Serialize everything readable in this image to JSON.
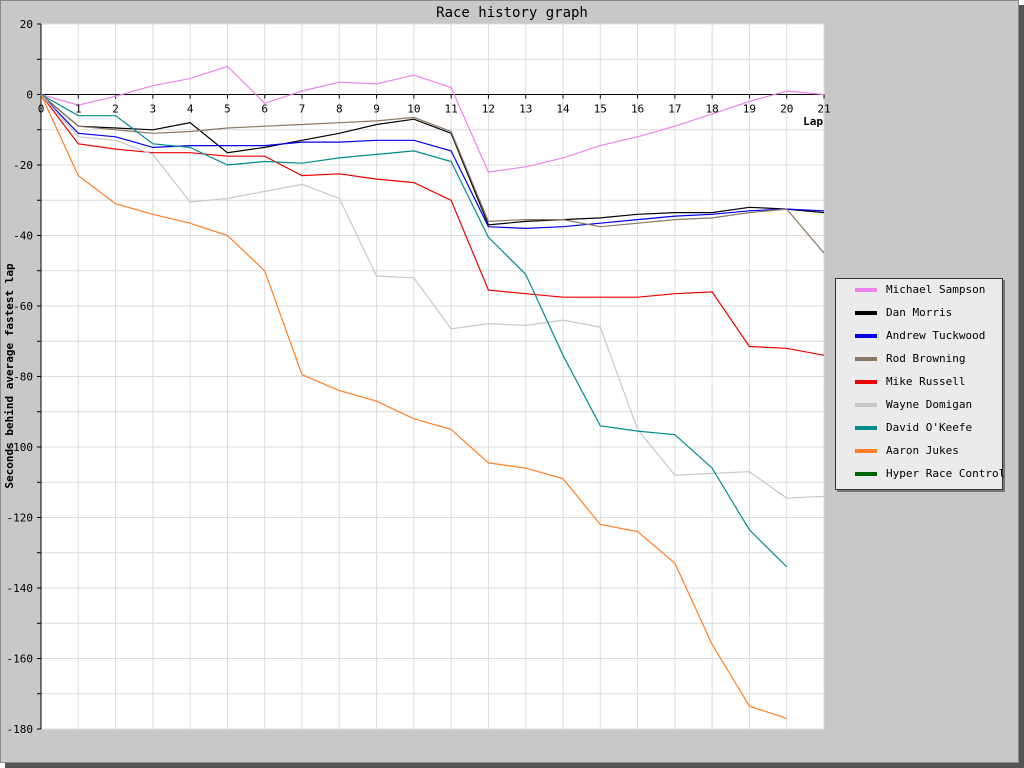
{
  "chart_data": {
    "type": "line",
    "title": "Race history graph",
    "xlabel": "Lap",
    "ylabel": "Seconds behind average fastest lap",
    "xlim": [
      0,
      21
    ],
    "ylim": [
      -180,
      20
    ],
    "x_ticks": [
      "0",
      "1",
      "2",
      "3",
      "4",
      "5",
      "6",
      "7",
      "8",
      "9",
      "10",
      "11",
      "12",
      "13",
      "14",
      "15",
      "16",
      "17",
      "18",
      "19",
      "20",
      "21"
    ],
    "y_ticks": [
      "20",
      "0",
      "-20",
      "-40",
      "-60",
      "-80",
      "-100",
      "-120",
      "-140",
      "-160",
      "-180"
    ],
    "grid": true,
    "legend_position": "right",
    "series": [
      {
        "name": "Michael Sampson",
        "color": "#ee82ee",
        "x": [
          0,
          1,
          2,
          3,
          4,
          5,
          6,
          7,
          8,
          9,
          10,
          11,
          12,
          13,
          14,
          15,
          16,
          17,
          18,
          19,
          20,
          21
        ],
        "y": [
          0,
          -3,
          -0.5,
          2.5,
          4.5,
          8,
          -2.5,
          1,
          3.5,
          3,
          5.5,
          2,
          -22,
          -20.5,
          -18,
          -14.5,
          -12,
          -9,
          -5.5,
          -2,
          1,
          0
        ]
      },
      {
        "name": "Dan Morris",
        "color": "#000000",
        "x": [
          0,
          1,
          2,
          3,
          4,
          5,
          6,
          7,
          8,
          9,
          10,
          11,
          12,
          13,
          14,
          15,
          16,
          17,
          18,
          19,
          20,
          21
        ],
        "y": [
          0,
          -9,
          -9.5,
          -10,
          -8,
          -16.5,
          -15,
          -13,
          -11,
          -8.5,
          -7,
          -11,
          -37,
          -36,
          -35.5,
          -35,
          -34,
          -33.5,
          -33.5,
          -32,
          -32.5,
          -33.5
        ]
      },
      {
        "name": "Andrew Tuckwood",
        "color": "#0000ee",
        "x": [
          0,
          1,
          2,
          3,
          4,
          5,
          6,
          7,
          8,
          9,
          10,
          11,
          12,
          13,
          14,
          15,
          16,
          17,
          18,
          19,
          20,
          21
        ],
        "y": [
          0,
          -11,
          -12,
          -15,
          -14.5,
          -14.5,
          -14.5,
          -13.5,
          -13.5,
          -13,
          -13,
          -16,
          -37.5,
          -38,
          -37.5,
          -36.5,
          -35.5,
          -34.5,
          -34,
          -33,
          -32.5,
          -33
        ]
      },
      {
        "name": "Rod Browning",
        "color": "#8b7765",
        "x": [
          0,
          1,
          2,
          3,
          4,
          5,
          6,
          7,
          8,
          9,
          10,
          11,
          12,
          13,
          14,
          15,
          16,
          17,
          18,
          19,
          20,
          21
        ],
        "y": [
          0,
          -9,
          -10,
          -11,
          -10.5,
          -9.5,
          -9,
          -8.5,
          -8,
          -7.5,
          -6.5,
          -10.5,
          -36,
          -35.5,
          -35.5,
          -37.5,
          -36.5,
          -35.5,
          -35,
          -33.5,
          -32.5,
          -45
        ]
      },
      {
        "name": "Mike Russell",
        "color": "#ee0000",
        "x": [
          0,
          1,
          2,
          3,
          4,
          5,
          6,
          7,
          8,
          9,
          10,
          11,
          12,
          13,
          14,
          15,
          16,
          17,
          18,
          19,
          20,
          21
        ],
        "y": [
          0,
          -14,
          -15.5,
          -16.5,
          -16.5,
          -17.5,
          -17.5,
          -23,
          -22.5,
          -24,
          -25,
          -30,
          -55.5,
          -56.5,
          -57.5,
          -57.5,
          -57.5,
          -56.5,
          -56,
          -71.5,
          -72,
          -74
        ]
      },
      {
        "name": "Wayne Domigan",
        "color": "#c8c8c8",
        "x": [
          0,
          1,
          2,
          3,
          4,
          5,
          6,
          7,
          8,
          9,
          10,
          11,
          12,
          13,
          14,
          15,
          16,
          17,
          18,
          19,
          20,
          21
        ],
        "y": [
          0,
          -12,
          -13,
          -17,
          -30.5,
          -29.5,
          -27.5,
          -25.5,
          -29.5,
          -51.5,
          -52,
          -66.5,
          -65,
          -65.5,
          -64,
          -66,
          -95,
          -108,
          -107.5,
          -107,
          -114.5,
          -114
        ]
      },
      {
        "name": "David O'Keefe",
        "color": "#008b8b",
        "x": [
          0,
          1,
          2,
          3,
          4,
          5,
          6,
          7,
          8,
          9,
          10,
          11,
          12,
          13,
          14,
          15,
          16,
          17,
          18,
          19,
          20
        ],
        "y": [
          0,
          -6,
          -6,
          -14,
          -15,
          -20,
          -19,
          -19.5,
          -18,
          -17,
          -16,
          -19,
          -40.5,
          -51,
          -74,
          -94,
          -95.5,
          -96.5,
          -106,
          -123.5,
          -134
        ]
      },
      {
        "name": "Aaron Jukes",
        "color": "#ff7f24",
        "x": [
          0,
          1,
          2,
          3,
          4,
          5,
          6,
          7,
          8,
          9,
          10,
          11,
          12,
          13,
          14,
          15,
          16,
          17,
          18,
          19,
          20
        ],
        "y": [
          0,
          -23,
          -31,
          -34,
          -36.5,
          -40,
          -50,
          -79.5,
          -84,
          -87,
          -92,
          -95,
          -104.5,
          -106,
          -109,
          -122,
          -124,
          -133,
          -156,
          -173.5,
          -177
        ]
      },
      {
        "name": "Hyper Race Control",
        "color": "#006400",
        "x": [],
        "y": []
      }
    ]
  }
}
